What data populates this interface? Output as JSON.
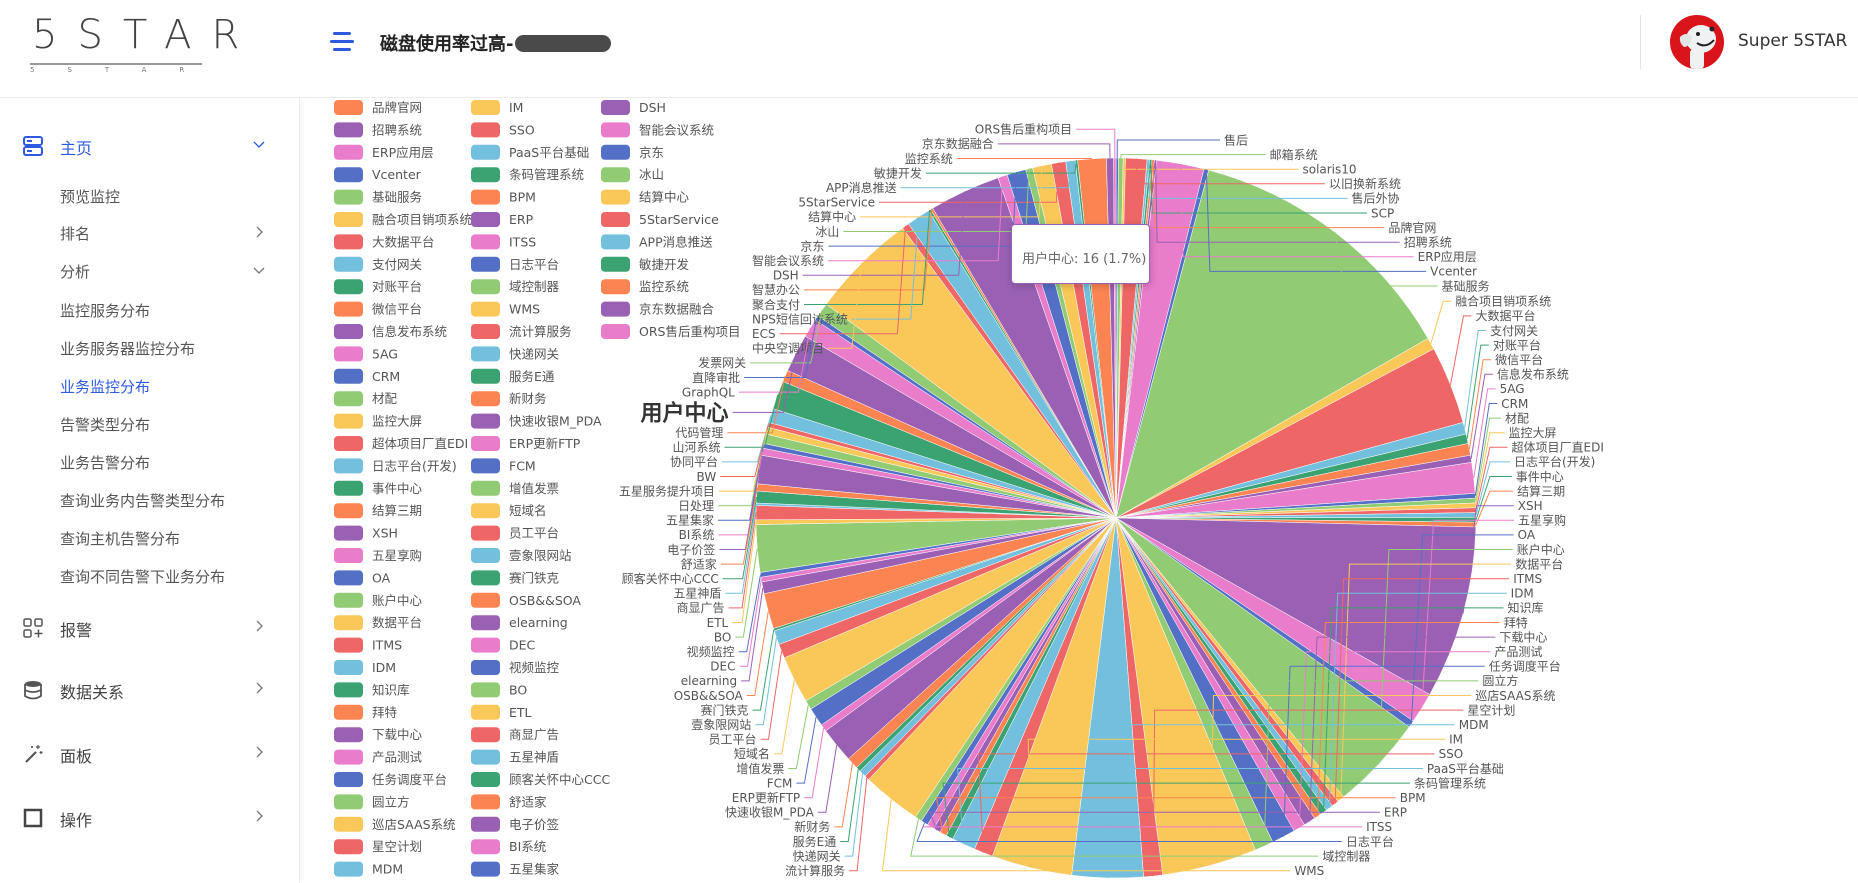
{
  "header": {
    "logo_text": "5STAR",
    "logo_subtext": "5STAR",
    "title": "磁盘使用率过高-",
    "username": "Super 5STAR"
  },
  "sidebar": {
    "items": [
      {
        "label": "主页",
        "icon": "server-icon",
        "expanded": true
      },
      {
        "label": "预览监控"
      },
      {
        "label": "排名",
        "chevron": "right"
      },
      {
        "label": "分析",
        "chevron": "down"
      },
      {
        "label": "监控服务分布"
      },
      {
        "label": "业务服务器监控分布"
      },
      {
        "label": "业务监控分布",
        "active": true
      },
      {
        "label": "告警类型分布"
      },
      {
        "label": "业务告警分布"
      },
      {
        "label": "查询业务内告警类型分布"
      },
      {
        "label": "查询主机告警分布"
      },
      {
        "label": "查询不同告警下业务分布"
      },
      {
        "label": "报警",
        "icon": "apps-add-icon"
      },
      {
        "label": "数据关系",
        "icon": "database-icon"
      },
      {
        "label": "面板",
        "icon": "magic-wand-icon"
      },
      {
        "label": "操作",
        "icon": "square-icon"
      }
    ],
    "active_color": "#2f5ae0"
  },
  "tooltip": {
    "name": "用户中心",
    "value": 16,
    "percent": "1.7%"
  },
  "chart_data": {
    "type": "pie",
    "palette": [
      "#5470c6",
      "#91cc75",
      "#fac858",
      "#ee6666",
      "#73c0de",
      "#3ba272",
      "#fc8452",
      "#9a60b4",
      "#ea7ccc"
    ],
    "highlighted": "用户中心",
    "data": [
      {
        "name": "售后",
        "value": 1,
        "c": 0
      },
      {
        "name": "邮箱系统",
        "value": 2,
        "c": 1
      },
      {
        "name": "solaris10",
        "value": 1,
        "c": 2
      },
      {
        "name": "以旧换新系统",
        "value": 9,
        "c": 3
      },
      {
        "name": "售后外协",
        "value": 1,
        "c": 4
      },
      {
        "name": "SCP",
        "value": 1,
        "c": 5
      },
      {
        "name": "品牌官网",
        "value": 1,
        "c": 6
      },
      {
        "name": "招聘系统",
        "value": 1,
        "c": 7
      },
      {
        "name": "ERP应用层",
        "value": 20,
        "c": 8
      },
      {
        "name": "Vcenter",
        "value": 2,
        "c": 0
      },
      {
        "name": "基础服务",
        "value": 118,
        "c": 1
      },
      {
        "name": "融合项目销项系统",
        "value": 5,
        "c": 2
      },
      {
        "name": "大数据平台",
        "value": 33,
        "c": 3
      },
      {
        "name": "支付网关",
        "value": 5,
        "c": 4
      },
      {
        "name": "对账平台",
        "value": 4,
        "c": 5
      },
      {
        "name": "微信平台",
        "value": 5,
        "c": 6
      },
      {
        "name": "信息发布系统",
        "value": 3,
        "c": 7
      },
      {
        "name": "5AG",
        "value": 13,
        "c": 8
      },
      {
        "name": "CRM",
        "value": 2,
        "c": 0
      },
      {
        "name": "材配",
        "value": 2,
        "c": 1
      },
      {
        "name": "监控大屏",
        "value": 2,
        "c": 2
      },
      {
        "name": "超体项目厂直EDI",
        "value": 2,
        "c": 3
      },
      {
        "name": "日志平台(开发)",
        "value": 2,
        "c": 4
      },
      {
        "name": "事件中心",
        "value": 2,
        "c": 5
      },
      {
        "name": "结算三期",
        "value": 2,
        "c": 6
      },
      {
        "name": "XSH",
        "value": 73,
        "c": 7
      },
      {
        "name": "五星享购",
        "value": 13,
        "c": 8
      },
      {
        "name": "OA",
        "value": 3,
        "c": 0
      },
      {
        "name": "账户中心",
        "value": 40,
        "c": 1
      },
      {
        "name": "数据平台",
        "value": 3,
        "c": 2
      },
      {
        "name": "ITMS",
        "value": 3,
        "c": 3
      },
      {
        "name": "IDM",
        "value": 3,
        "c": 4
      },
      {
        "name": "知识库",
        "value": 3,
        "c": 5
      },
      {
        "name": "拜特",
        "value": 3,
        "c": 6
      },
      {
        "name": "下载中心",
        "value": 5,
        "c": 7
      },
      {
        "name": "产品测试",
        "value": 5,
        "c": 8
      },
      {
        "name": "任务调度平台",
        "value": 10,
        "c": 0
      },
      {
        "name": "圆立方",
        "value": 8,
        "c": 1
      },
      {
        "name": "巡店SAAS系统",
        "value": 40,
        "c": 2
      },
      {
        "name": "星空计划",
        "value": 8,
        "c": 3
      },
      {
        "name": "MDM",
        "value": 30,
        "c": 4
      },
      {
        "name": "IM",
        "value": 34,
        "c": 2
      },
      {
        "name": "SSO",
        "value": 8,
        "c": 3
      },
      {
        "name": "PaaS平台基础",
        "value": 10,
        "c": 4
      },
      {
        "name": "条码管理系统",
        "value": 3,
        "c": 5
      },
      {
        "name": "BPM",
        "value": 3,
        "c": 6
      },
      {
        "name": "ERP",
        "value": 3,
        "c": 7
      },
      {
        "name": "ITSS",
        "value": 3,
        "c": 8
      },
      {
        "name": "日志平台",
        "value": 3,
        "c": 0
      },
      {
        "name": "域控制器",
        "value": 3,
        "c": 1
      },
      {
        "name": "WMS",
        "value": 25,
        "c": 2
      },
      {
        "name": "流计算服务",
        "value": 2,
        "c": 3
      },
      {
        "name": "快递网关",
        "value": 3,
        "c": 4
      },
      {
        "name": "服务E通",
        "value": 2,
        "c": 5
      },
      {
        "name": "新财务",
        "value": 5,
        "c": 6
      },
      {
        "name": "快速收银M_PDA",
        "value": 15,
        "c": 7
      },
      {
        "name": "ERP更新FTP",
        "value": 3,
        "c": 8
      },
      {
        "name": "FCM",
        "value": 8,
        "c": 0
      },
      {
        "name": "增值发票",
        "value": 4,
        "c": 1
      },
      {
        "name": "短域名",
        "value": 20,
        "c": 2
      },
      {
        "name": "员工平台",
        "value": 6,
        "c": 3
      },
      {
        "name": "壹象限网站",
        "value": 6,
        "c": 4
      },
      {
        "name": "赛门铁克",
        "value": 1,
        "c": 5
      },
      {
        "name": "OSB&&SOA",
        "value": 15,
        "c": 6
      },
      {
        "name": "elearning",
        "value": 5,
        "c": 7
      },
      {
        "name": "DEC",
        "value": 2,
        "c": 8
      },
      {
        "name": "视频监控",
        "value": 2,
        "c": 0
      },
      {
        "name": "BO",
        "value": 20,
        "c": 1
      },
      {
        "name": "ETL",
        "value": 2,
        "c": 2
      },
      {
        "name": "商显广告",
        "value": 6,
        "c": 3
      },
      {
        "name": "五星神盾",
        "value": 1,
        "c": 4
      },
      {
        "name": "顾客关怀中心CCC",
        "value": 5,
        "c": 5
      },
      {
        "name": "舒适家",
        "value": 3,
        "c": 6
      },
      {
        "name": "电子价签",
        "value": 12,
        "c": 7
      },
      {
        "name": "BI系统",
        "value": 3,
        "c": 8
      },
      {
        "name": "五星集家",
        "value": 2,
        "c": 0
      },
      {
        "name": "日处理",
        "value": 4,
        "c": 1
      },
      {
        "name": "五星服务提升项目",
        "value": 3,
        "c": 2
      },
      {
        "name": "BW",
        "value": 2,
        "c": 3
      },
      {
        "name": "协同平台",
        "value": 6,
        "c": 4
      },
      {
        "name": "山河系统",
        "value": 12,
        "c": 5
      },
      {
        "name": "代码管理",
        "value": 5,
        "c": 6
      },
      {
        "name": "用户中心",
        "value": 16,
        "c": 7
      },
      {
        "name": "GraphQL",
        "value": 8,
        "c": 8
      },
      {
        "name": "直降审批",
        "value": 2,
        "c": 0
      },
      {
        "name": "发票网关",
        "value": 6,
        "c": 1
      },
      {
        "name": "中央空调项目",
        "value": 45,
        "c": 2
      },
      {
        "name": "ECS",
        "value": 3,
        "c": 3
      },
      {
        "name": "NPS短信回访系统",
        "value": 10,
        "c": 4
      },
      {
        "name": "聚合支付",
        "value": 1,
        "c": 5
      },
      {
        "name": "智慧办公",
        "value": 1,
        "c": 6
      },
      {
        "name": "DSH",
        "value": 30,
        "c": 7
      },
      {
        "name": "智能会议系统",
        "value": 4,
        "c": 8
      },
      {
        "name": "京东",
        "value": 8,
        "c": 0
      },
      {
        "name": "冰山",
        "value": 3,
        "c": 1
      },
      {
        "name": "结算中心",
        "value": 8,
        "c": 2
      },
      {
        "name": "5StarService",
        "value": 6,
        "c": 3
      },
      {
        "name": "APP消息推送",
        "value": 4,
        "c": 4
      },
      {
        "name": "敏捷开发",
        "value": 1,
        "c": 5
      },
      {
        "name": "监控系统",
        "value": 12,
        "c": 6
      },
      {
        "name": "京东数据融合",
        "value": 3,
        "c": 7
      },
      {
        "name": "ORS售后重构项目",
        "value": 1,
        "c": 8
      }
    ],
    "legend": {
      "placement": "left",
      "columns": [
        [
          "品牌官网",
          "招聘系统",
          "ERP应用层",
          "Vcenter",
          "基础服务",
          "融合项目销项系统",
          "大数据平台",
          "支付网关",
          "对账平台",
          "微信平台",
          "信息发布系统",
          "5AG",
          "CRM",
          "材配",
          "监控大屏",
          "超体项目厂直EDI",
          "日志平台(开发)",
          "事件中心",
          "结算三期",
          "XSH",
          "五星享购",
          "OA",
          "账户中心",
          "数据平台",
          "ITMS",
          "IDM",
          "知识库",
          "拜特",
          "下载中心",
          "产品测试",
          "任务调度平台",
          "圆立方",
          "巡店SAAS系统",
          "星空计划",
          "MDM"
        ],
        [
          "IM",
          "SSO",
          "PaaS平台基础",
          "条码管理系统",
          "BPM",
          "ERP",
          "ITSS",
          "日志平台",
          "域控制器",
          "WMS",
          "流计算服务",
          "快递网关",
          "服务E通",
          "新财务",
          "快速收银M_PDA",
          "ERP更新FTP",
          "FCM",
          "增值发票",
          "短域名",
          "员工平台",
          "壹象限网站",
          "赛门铁克",
          "OSB&&SOA",
          "elearning",
          "DEC",
          "视频监控",
          "BO",
          "ETL",
          "商显广告",
          "五星神盾",
          "顾客关怀中心CCC",
          "舒适家",
          "电子价签",
          "BI系统",
          "五星集家"
        ],
        [
          "DSH",
          "智能会议系统",
          "京东",
          "冰山",
          "结算中心",
          "5StarService",
          "APP消息推送",
          "敏捷开发",
          "监控系统",
          "京东数据融合",
          "ORS售后重构项目"
        ]
      ]
    }
  }
}
